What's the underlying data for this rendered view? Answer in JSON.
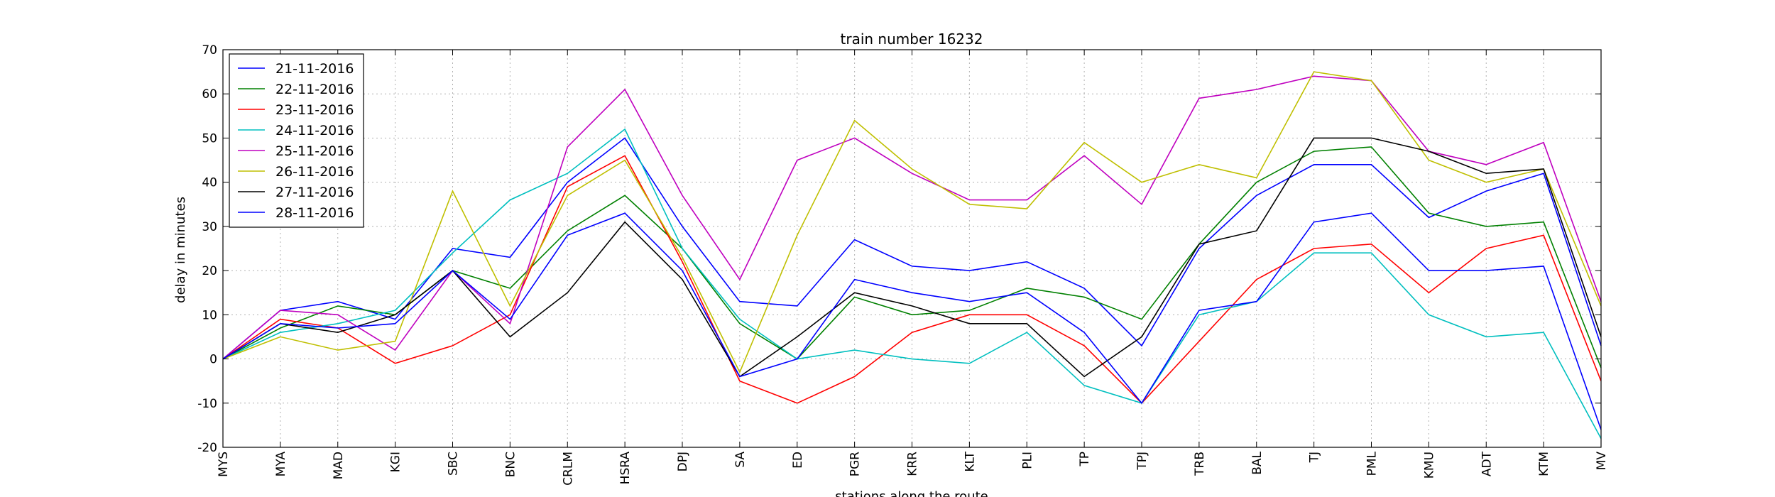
{
  "chart_data": {
    "type": "line",
    "title": "train number 16232",
    "xlabel": "stations along the route",
    "ylabel": "delay in minutes",
    "categories": [
      "MYS",
      "MYA",
      "MAD",
      "KGI",
      "SBC",
      "BNC",
      "CRLM",
      "HSRA",
      "DPJ",
      "SA",
      "ED",
      "PGR",
      "KRR",
      "KLT",
      "PLI",
      "TP",
      "TPJ",
      "TRB",
      "BAL",
      "TJ",
      "PML",
      "KMU",
      "ADT",
      "KTM",
      "MV"
    ],
    "ylim": [
      -20,
      70
    ],
    "yticks": [
      -20,
      -10,
      0,
      10,
      20,
      30,
      40,
      50,
      60,
      70
    ],
    "grid": true,
    "legend_position": "top-left",
    "series": [
      {
        "name": "21-11-2016",
        "color": "#0000ff",
        "values": [
          0,
          11,
          13,
          9,
          25,
          23,
          40,
          50,
          30,
          13,
          12,
          27,
          21,
          20,
          22,
          16,
          3,
          25,
          37,
          44,
          44,
          32,
          38,
          42,
          3
        ]
      },
      {
        "name": "22-11-2016",
        "color": "#008000",
        "values": [
          0,
          7,
          12,
          10,
          20,
          16,
          29,
          37,
          25,
          8,
          0,
          14,
          10,
          11,
          16,
          14,
          9,
          26,
          40,
          47,
          48,
          33,
          30,
          31,
          -2
        ]
      },
      {
        "name": "23-11-2016",
        "color": "#ff0000",
        "values": [
          0,
          9,
          7,
          -1,
          3,
          10,
          39,
          46,
          22,
          -5,
          -10,
          -4,
          6,
          10,
          10,
          3,
          -10,
          4,
          18,
          25,
          26,
          15,
          25,
          28,
          -5
        ]
      },
      {
        "name": "24-11-2016",
        "color": "#00bfbf",
        "values": [
          0,
          6,
          8,
          11,
          24,
          36,
          42,
          52,
          25,
          9,
          0,
          2,
          0,
          -1,
          6,
          -6,
          -10,
          10,
          13,
          24,
          24,
          10,
          5,
          6,
          -18
        ]
      },
      {
        "name": "25-11-2016",
        "color": "#bf00bf",
        "values": [
          0,
          11,
          10,
          2,
          20,
          8,
          48,
          61,
          37,
          18,
          45,
          50,
          42,
          36,
          36,
          46,
          35,
          59,
          61,
          64,
          63,
          47,
          44,
          49,
          13
        ]
      },
      {
        "name": "26-11-2016",
        "color": "#bfbf00",
        "values": [
          0,
          5,
          2,
          4,
          38,
          12,
          37,
          45,
          23,
          -3,
          28,
          54,
          43,
          35,
          34,
          49,
          40,
          44,
          41,
          65,
          63,
          45,
          40,
          43,
          12
        ]
      },
      {
        "name": "27-11-2016",
        "color": "#000000",
        "values": [
          0,
          8,
          6,
          10,
          20,
          5,
          15,
          31,
          18,
          -4,
          5,
          15,
          12,
          8,
          8,
          -4,
          5,
          26,
          29,
          50,
          50,
          47,
          42,
          43,
          5
        ]
      },
      {
        "name": "28-11-2016",
        "color": "#0000ff",
        "values": [
          0,
          8,
          7,
          8,
          20,
          9,
          28,
          33,
          20,
          -4,
          0,
          18,
          15,
          13,
          15,
          6,
          -10,
          11,
          13,
          31,
          33,
          20,
          20,
          21,
          -16
        ]
      }
    ]
  }
}
